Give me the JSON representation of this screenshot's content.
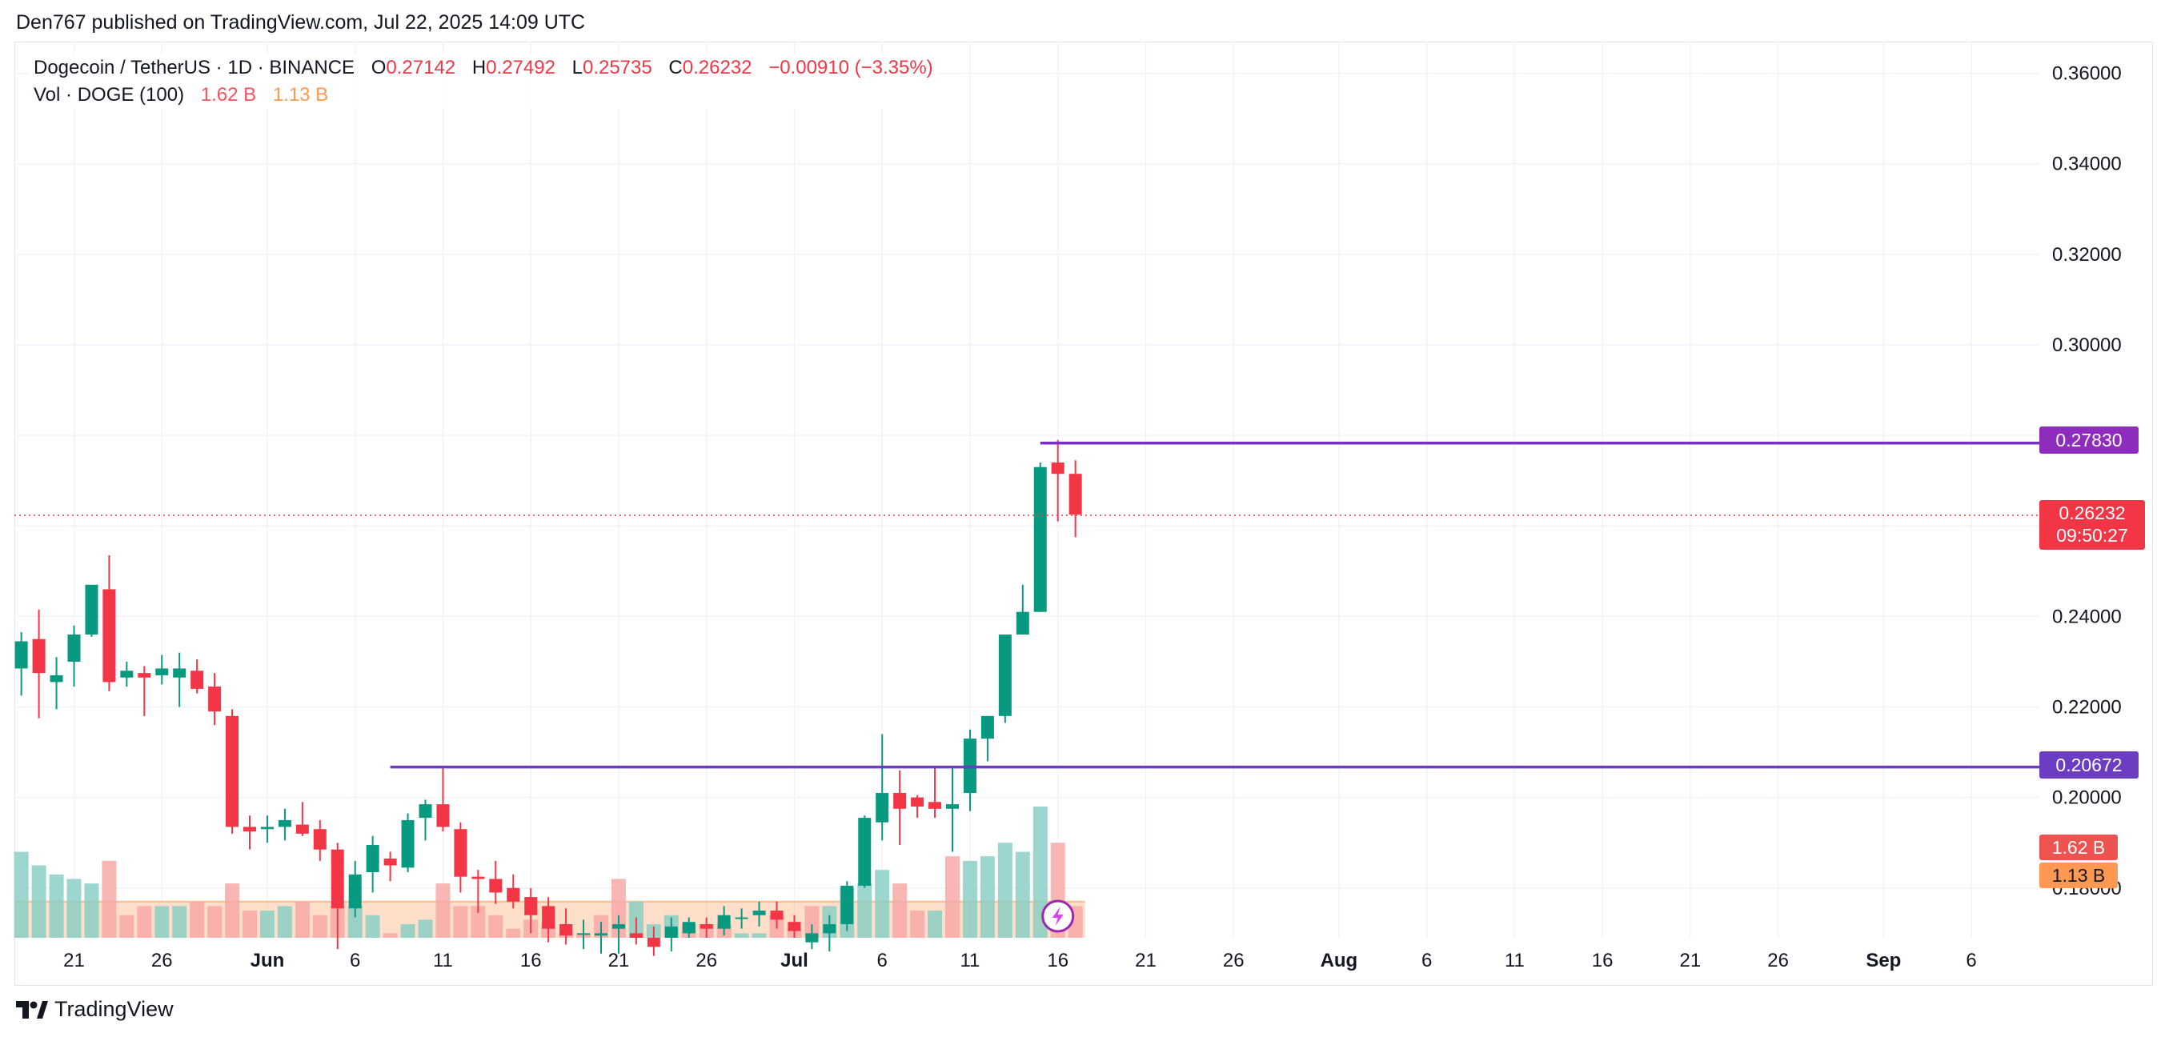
{
  "header": {
    "published": "Den767 published on TradingView.com, Jul 22, 2025 14:09 UTC"
  },
  "legend": {
    "symbol": "Dogecoin / TetherUS · 1D · BINANCE",
    "o_label": "O",
    "o_value": "0.27142",
    "h_label": "H",
    "h_value": "0.27492",
    "l_label": "L",
    "l_value": "0.25735",
    "c_label": "C",
    "c_value": "0.26232",
    "change": "−0.00910 (−3.35%)",
    "vol_label": "Vol · DOGE (100)",
    "vol_value": "1.62 B",
    "vol_ma": "1.13 B"
  },
  "tags": {
    "level_high": "0.27830",
    "current_price": "0.26232",
    "countdown": "09:50:27",
    "level_low": "0.20672",
    "vol_tag": "1.62 B",
    "vol_ma_tag": "1.13 B"
  },
  "footer": {
    "brand": "TradingView"
  },
  "colors": {
    "up": "#089981",
    "down": "#f23645",
    "level": "#7b2fbe",
    "level_low": "#6a3dc2",
    "vol_up": "#8bcfc6",
    "vol_down": "#f7a9a7",
    "vol_ma": "#ffb98a"
  },
  "chart_data": {
    "type": "candlestick",
    "title": "Dogecoin / TetherUS · 1D · BINANCE",
    "y_axis_labels": [
      "0.36000",
      "0.34000",
      "0.32000",
      "0.30000",
      "0.24000",
      "0.22000",
      "0.20000",
      "0.18000"
    ],
    "y_axis_values": [
      0.36,
      0.34,
      0.32,
      0.3,
      0.24,
      0.22,
      0.2,
      0.18
    ],
    "ylim": [
      0.169,
      0.367
    ],
    "x_tick_labels": [
      {
        "day": 0,
        "label": "21",
        "bold": false
      },
      {
        "day": 5,
        "label": "26",
        "bold": false
      },
      {
        "day": 11,
        "label": "Jun",
        "bold": true
      },
      {
        "day": 16,
        "label": "6",
        "bold": false
      },
      {
        "day": 21,
        "label": "11",
        "bold": false
      },
      {
        "day": 26,
        "label": "16",
        "bold": false
      },
      {
        "day": 31,
        "label": "21",
        "bold": false
      },
      {
        "day": 36,
        "label": "26",
        "bold": false
      },
      {
        "day": 41,
        "label": "Jul",
        "bold": true
      },
      {
        "day": 46,
        "label": "6",
        "bold": false
      },
      {
        "day": 51,
        "label": "11",
        "bold": false
      },
      {
        "day": 56,
        "label": "16",
        "bold": false
      },
      {
        "day": 61,
        "label": "21",
        "bold": false
      },
      {
        "day": 66,
        "label": "26",
        "bold": false
      },
      {
        "day": 72,
        "label": "Aug",
        "bold": true
      },
      {
        "day": 77,
        "label": "6",
        "bold": false
      },
      {
        "day": 82,
        "label": "11",
        "bold": false
      },
      {
        "day": 87,
        "label": "16",
        "bold": false
      },
      {
        "day": 92,
        "label": "21",
        "bold": false
      },
      {
        "day": 97,
        "label": "26",
        "bold": false
      },
      {
        "day": 103,
        "label": "Sep",
        "bold": true
      },
      {
        "day": 108,
        "label": "6",
        "bold": false
      }
    ],
    "first_day_offset": -3,
    "candles": [
      [
        0.2285,
        0.2365,
        0.2225,
        0.2345
      ],
      [
        0.235,
        0.2415,
        0.2175,
        0.2275
      ],
      [
        0.2255,
        0.231,
        0.2195,
        0.227
      ],
      [
        0.23,
        0.238,
        0.2245,
        0.236
      ],
      [
        0.236,
        0.246,
        0.2355,
        0.247
      ],
      [
        0.246,
        0.2535,
        0.2235,
        0.2255
      ],
      [
        0.2265,
        0.23,
        0.2245,
        0.228
      ],
      [
        0.2275,
        0.229,
        0.218,
        0.2265
      ],
      [
        0.227,
        0.2315,
        0.225,
        0.2285
      ],
      [
        0.2265,
        0.232,
        0.22,
        0.2285
      ],
      [
        0.228,
        0.2305,
        0.223,
        0.224
      ],
      [
        0.2245,
        0.2275,
        0.216,
        0.219
      ],
      [
        0.218,
        0.2195,
        0.192,
        0.1935
      ],
      [
        0.1935,
        0.196,
        0.1885,
        0.1925
      ],
      [
        0.193,
        0.196,
        0.19,
        0.1935
      ],
      [
        0.1935,
        0.1975,
        0.1905,
        0.195
      ],
      [
        0.194,
        0.199,
        0.1915,
        0.192
      ],
      [
        0.193,
        0.195,
        0.186,
        0.1885
      ],
      [
        0.1885,
        0.19,
        0.1665,
        0.1755
      ],
      [
        0.1755,
        0.186,
        0.1735,
        0.183
      ],
      [
        0.1835,
        0.1915,
        0.179,
        0.1895
      ],
      [
        0.1865,
        0.188,
        0.1815,
        0.185
      ],
      [
        0.1845,
        0.1965,
        0.1835,
        0.195
      ],
      [
        0.1955,
        0.1995,
        0.1905,
        0.1985
      ],
      [
        0.1985,
        0.207,
        0.1925,
        0.1935
      ],
      [
        0.193,
        0.1945,
        0.179,
        0.1825
      ],
      [
        0.1825,
        0.184,
        0.1745,
        0.182
      ],
      [
        0.182,
        0.186,
        0.1765,
        0.179
      ],
      [
        0.18,
        0.183,
        0.1755,
        0.177
      ],
      [
        0.178,
        0.18,
        0.17,
        0.174
      ],
      [
        0.176,
        0.178,
        0.168,
        0.171
      ],
      [
        0.172,
        0.1755,
        0.1675,
        0.1695
      ],
      [
        0.17,
        0.173,
        0.1665,
        0.17
      ],
      [
        0.1695,
        0.1725,
        0.1655,
        0.17
      ],
      [
        0.171,
        0.174,
        0.1655,
        0.172
      ],
      [
        0.17,
        0.1735,
        0.1675,
        0.169
      ],
      [
        0.169,
        0.1715,
        0.165,
        0.167
      ],
      [
        0.169,
        0.1735,
        0.166,
        0.1715
      ],
      [
        0.17,
        0.1735,
        0.169,
        0.1725
      ],
      [
        0.172,
        0.1735,
        0.169,
        0.171
      ],
      [
        0.171,
        0.176,
        0.1695,
        0.174
      ],
      [
        0.1735,
        0.1755,
        0.171,
        0.1735
      ],
      [
        0.174,
        0.177,
        0.1715,
        0.175
      ],
      [
        0.175,
        0.177,
        0.171,
        0.173
      ],
      [
        0.1725,
        0.174,
        0.169,
        0.1705
      ],
      [
        0.168,
        0.172,
        0.1665,
        0.17
      ],
      [
        0.17,
        0.174,
        0.166,
        0.172
      ],
      [
        0.172,
        0.1815,
        0.1705,
        0.1805
      ],
      [
        0.1805,
        0.196,
        0.18,
        0.1955
      ],
      [
        0.1945,
        0.214,
        0.1905,
        0.201
      ],
      [
        0.201,
        0.206,
        0.1895,
        0.1975
      ],
      [
        0.2,
        0.2005,
        0.1955,
        0.198
      ],
      [
        0.199,
        0.207,
        0.1955,
        0.1975
      ],
      [
        0.1975,
        0.2065,
        0.188,
        0.1985
      ],
      [
        0.201,
        0.215,
        0.197,
        0.213
      ],
      [
        0.213,
        0.218,
        0.208,
        0.218
      ],
      [
        0.218,
        0.236,
        0.2165,
        0.236
      ],
      [
        0.236,
        0.247,
        0.236,
        0.241
      ],
      [
        0.241,
        0.274,
        0.241,
        0.273
      ],
      [
        0.274,
        0.279,
        0.261,
        0.2715
      ],
      [
        0.2715,
        0.2745,
        0.2575,
        0.2625
      ]
    ],
    "volumes": [
      [
        0.188,
        "up"
      ],
      [
        0.185,
        "up"
      ],
      [
        0.183,
        "up"
      ],
      [
        0.182,
        "up"
      ],
      [
        0.181,
        "up"
      ],
      [
        0.186,
        "down"
      ],
      [
        0.174,
        "down"
      ],
      [
        0.176,
        "down"
      ],
      [
        0.176,
        "up"
      ],
      [
        0.176,
        "up"
      ],
      [
        0.177,
        "down"
      ],
      [
        0.176,
        "down"
      ],
      [
        0.181,
        "down"
      ],
      [
        0.175,
        "down"
      ],
      [
        0.175,
        "up"
      ],
      [
        0.176,
        "up"
      ],
      [
        0.177,
        "down"
      ],
      [
        0.174,
        "down"
      ],
      [
        0.176,
        "down"
      ],
      [
        0.176,
        "up"
      ],
      [
        0.174,
        "up"
      ],
      [
        0.17,
        "down"
      ],
      [
        0.172,
        "up"
      ],
      [
        0.173,
        "up"
      ],
      [
        0.181,
        "down"
      ],
      [
        0.176,
        "down"
      ],
      [
        0.176,
        "down"
      ],
      [
        0.174,
        "down"
      ],
      [
        0.171,
        "down"
      ],
      [
        0.173,
        "down"
      ],
      [
        0.172,
        "down"
      ],
      [
        0.17,
        "down"
      ],
      [
        0.17,
        "down"
      ],
      [
        0.174,
        "down"
      ],
      [
        0.182,
        "down"
      ],
      [
        0.177,
        "up"
      ],
      [
        0.172,
        "up"
      ],
      [
        0.174,
        "up"
      ],
      [
        0.172,
        "down"
      ],
      [
        0.172,
        "down"
      ],
      [
        0.172,
        "down"
      ],
      [
        0.17,
        "up"
      ],
      [
        0.17,
        "up"
      ],
      [
        0.174,
        "down"
      ],
      [
        0.171,
        "down"
      ],
      [
        0.176,
        "down"
      ],
      [
        0.176,
        "up"
      ],
      [
        0.18,
        "up"
      ],
      [
        0.181,
        "up"
      ],
      [
        0.184,
        "up"
      ],
      [
        0.181,
        "down"
      ],
      [
        0.175,
        "down"
      ],
      [
        0.175,
        "up"
      ],
      [
        0.187,
        "down"
      ],
      [
        0.186,
        "up"
      ],
      [
        0.187,
        "up"
      ],
      [
        0.19,
        "up"
      ],
      [
        0.188,
        "up"
      ],
      [
        0.198,
        "up"
      ],
      [
        0.19,
        "down"
      ],
      [
        0.176,
        "down"
      ]
    ],
    "vol_ma_top": 0.177,
    "level_high_value": 0.2783,
    "level_high_start_day": 58,
    "level_low_value": 0.20672,
    "level_low_start_day": 21,
    "current_price_value": 0.26232
  }
}
